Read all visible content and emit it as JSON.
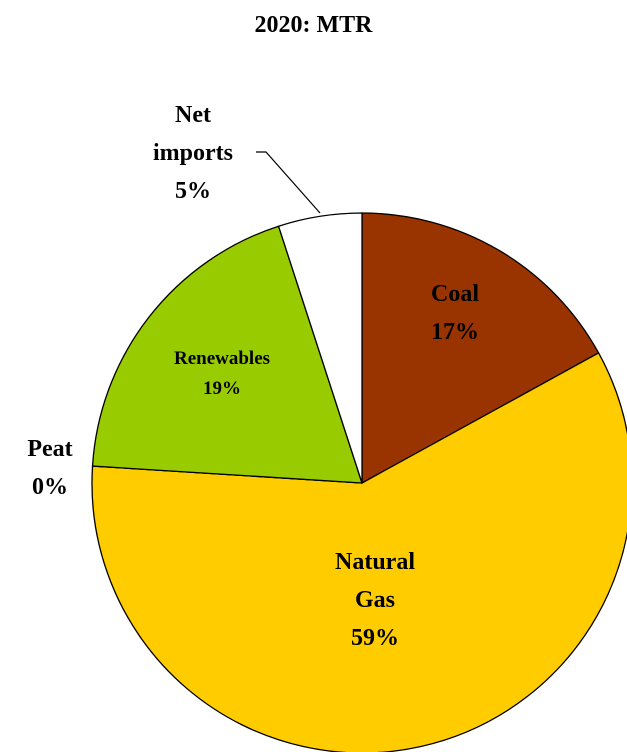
{
  "chart_data": {
    "type": "pie",
    "title": "2020: MTR",
    "categories": [
      "Coal",
      "Natural Gas",
      "Peat",
      "Renewables",
      "Net imports"
    ],
    "values": [
      17,
      59,
      0,
      19,
      5
    ],
    "value_labels": [
      "17%",
      "59%",
      "0%",
      "19%",
      "5%"
    ],
    "colors": [
      "#993300",
      "#ffcc00",
      "#7f7f7f",
      "#99cc00",
      "#ffffff"
    ]
  }
}
